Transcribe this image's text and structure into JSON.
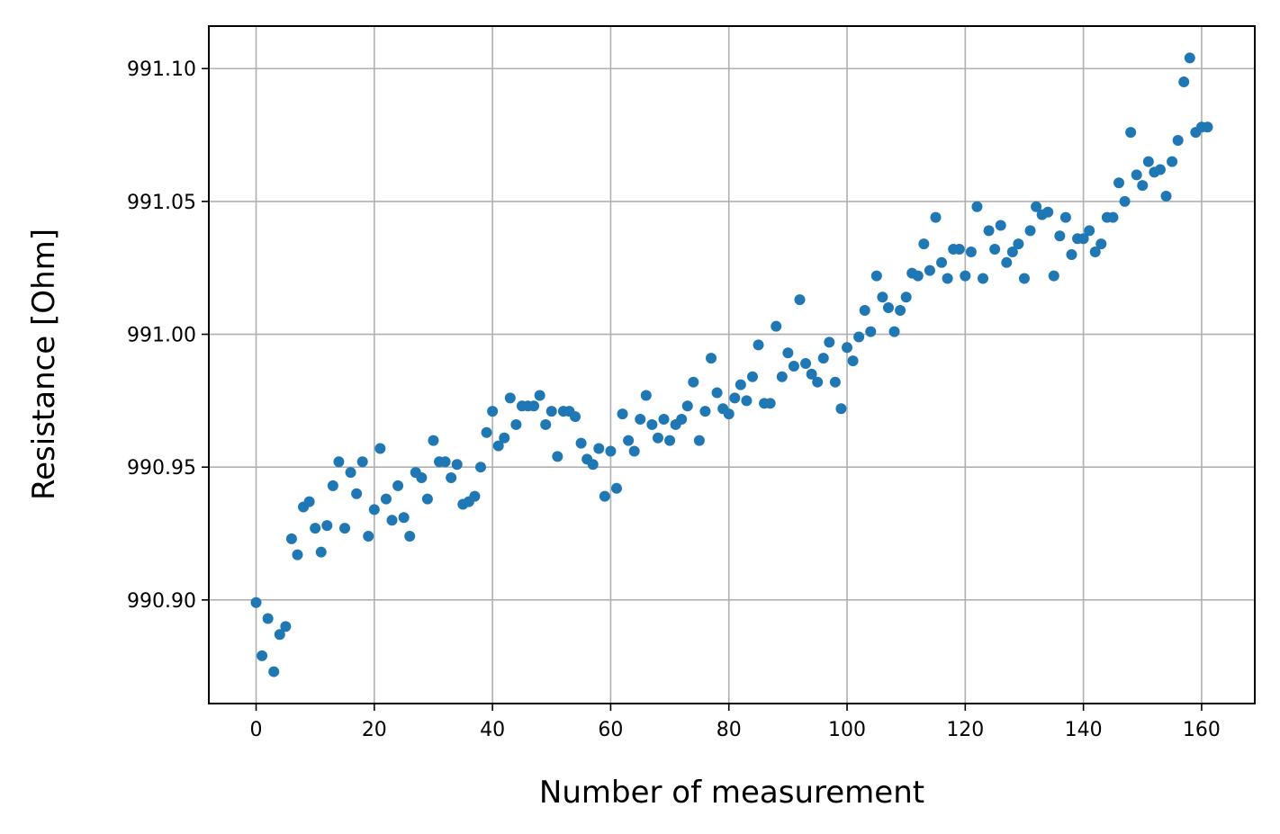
{
  "chart_data": {
    "type": "scatter",
    "title": "",
    "xlabel": "Number of measurement",
    "ylabel": "Resistance [Ohm]",
    "xlim": [
      -8,
      169
    ],
    "ylim": [
      990.861,
      991.116
    ],
    "xticks": [
      0,
      20,
      40,
      60,
      80,
      100,
      120,
      140,
      160
    ],
    "xtick_labels": [
      "0",
      "20",
      "40",
      "60",
      "80",
      "100",
      "120",
      "140",
      "160"
    ],
    "yticks": [
      990.9,
      990.95,
      991.0,
      991.05,
      991.1
    ],
    "ytick_labels": [
      "990.90",
      "990.95",
      "991.00",
      "991.05",
      "991.10"
    ],
    "grid": true,
    "color": "#1f77b4",
    "series": [
      {
        "x": [
          0,
          1,
          2,
          3,
          4,
          5,
          6,
          7,
          8,
          9,
          10,
          11,
          12,
          13,
          14,
          15,
          16,
          17,
          18,
          19,
          20,
          21,
          22,
          23,
          24,
          25,
          26,
          27,
          28,
          29,
          30,
          31,
          32,
          33,
          34,
          35,
          36,
          37,
          38,
          39,
          40,
          41,
          42,
          43,
          44,
          45,
          46,
          47,
          48,
          49,
          50,
          51,
          52,
          53,
          54,
          55,
          56,
          57,
          58,
          59,
          60,
          61,
          62,
          63,
          64,
          65,
          66,
          67,
          68,
          69,
          70,
          71,
          72,
          73,
          74,
          75,
          76,
          77,
          78,
          79,
          80,
          81,
          82,
          83,
          84,
          85,
          86,
          87,
          88,
          89,
          90,
          91,
          92,
          93,
          94,
          95,
          96,
          97,
          98,
          99,
          100,
          101,
          102,
          103,
          104,
          105,
          106,
          107,
          108,
          109,
          110,
          111,
          112,
          113,
          114,
          115,
          116,
          117,
          118,
          119,
          120,
          121,
          122,
          123,
          124,
          125,
          126,
          127,
          128,
          129,
          130,
          131,
          132,
          133,
          134,
          135,
          136,
          137,
          138,
          139,
          140,
          141,
          142,
          143,
          144,
          145,
          146,
          147,
          148,
          149,
          150,
          151,
          152,
          153,
          154,
          155,
          156,
          157,
          158,
          159,
          160,
          161
        ],
        "y": [
          990.899,
          990.879,
          990.893,
          990.873,
          990.887,
          990.89,
          990.923,
          990.917,
          990.935,
          990.937,
          990.927,
          990.918,
          990.928,
          990.943,
          990.952,
          990.927,
          990.948,
          990.94,
          990.952,
          990.924,
          990.934,
          990.957,
          990.938,
          990.93,
          990.943,
          990.931,
          990.924,
          990.948,
          990.946,
          990.938,
          990.96,
          990.952,
          990.952,
          990.946,
          990.951,
          990.936,
          990.937,
          990.939,
          990.95,
          990.963,
          990.971,
          990.958,
          990.961,
          990.976,
          990.966,
          990.973,
          990.973,
          990.973,
          990.977,
          990.966,
          990.971,
          990.954,
          990.971,
          990.971,
          990.969,
          990.959,
          990.953,
          990.951,
          990.957,
          990.939,
          990.956,
          990.942,
          990.97,
          990.96,
          990.956,
          990.968,
          990.977,
          990.966,
          990.961,
          990.968,
          990.96,
          990.966,
          990.968,
          990.973,
          990.982,
          990.96,
          990.971,
          990.991,
          990.978,
          990.972,
          990.97,
          990.976,
          990.981,
          990.975,
          990.984,
          990.996,
          990.974,
          990.974,
          991.003,
          990.984,
          990.993,
          990.988,
          991.013,
          990.989,
          990.985,
          990.982,
          990.991,
          990.997,
          990.982,
          990.972,
          990.995,
          990.99,
          990.999,
          991.009,
          991.001,
          991.022,
          991.014,
          991.01,
          991.001,
          991.009,
          991.014,
          991.023,
          991.022,
          991.034,
          991.024,
          991.044,
          991.027,
          991.021,
          991.032,
          991.032,
          991.022,
          991.031,
          991.048,
          991.021,
          991.039,
          991.032,
          991.041,
          991.027,
          991.031,
          991.034,
          991.021,
          991.039,
          991.048,
          991.045,
          991.046,
          991.022,
          991.037,
          991.044,
          991.03,
          991.036,
          991.036,
          991.039,
          991.031,
          991.034,
          991.044,
          991.044,
          991.057,
          991.05,
          991.076,
          991.06,
          991.056,
          991.065,
          991.061,
          991.062,
          991.052,
          991.065,
          991.073,
          991.095,
          991.104,
          991.076,
          991.078,
          991.078
        ]
      }
    ]
  }
}
